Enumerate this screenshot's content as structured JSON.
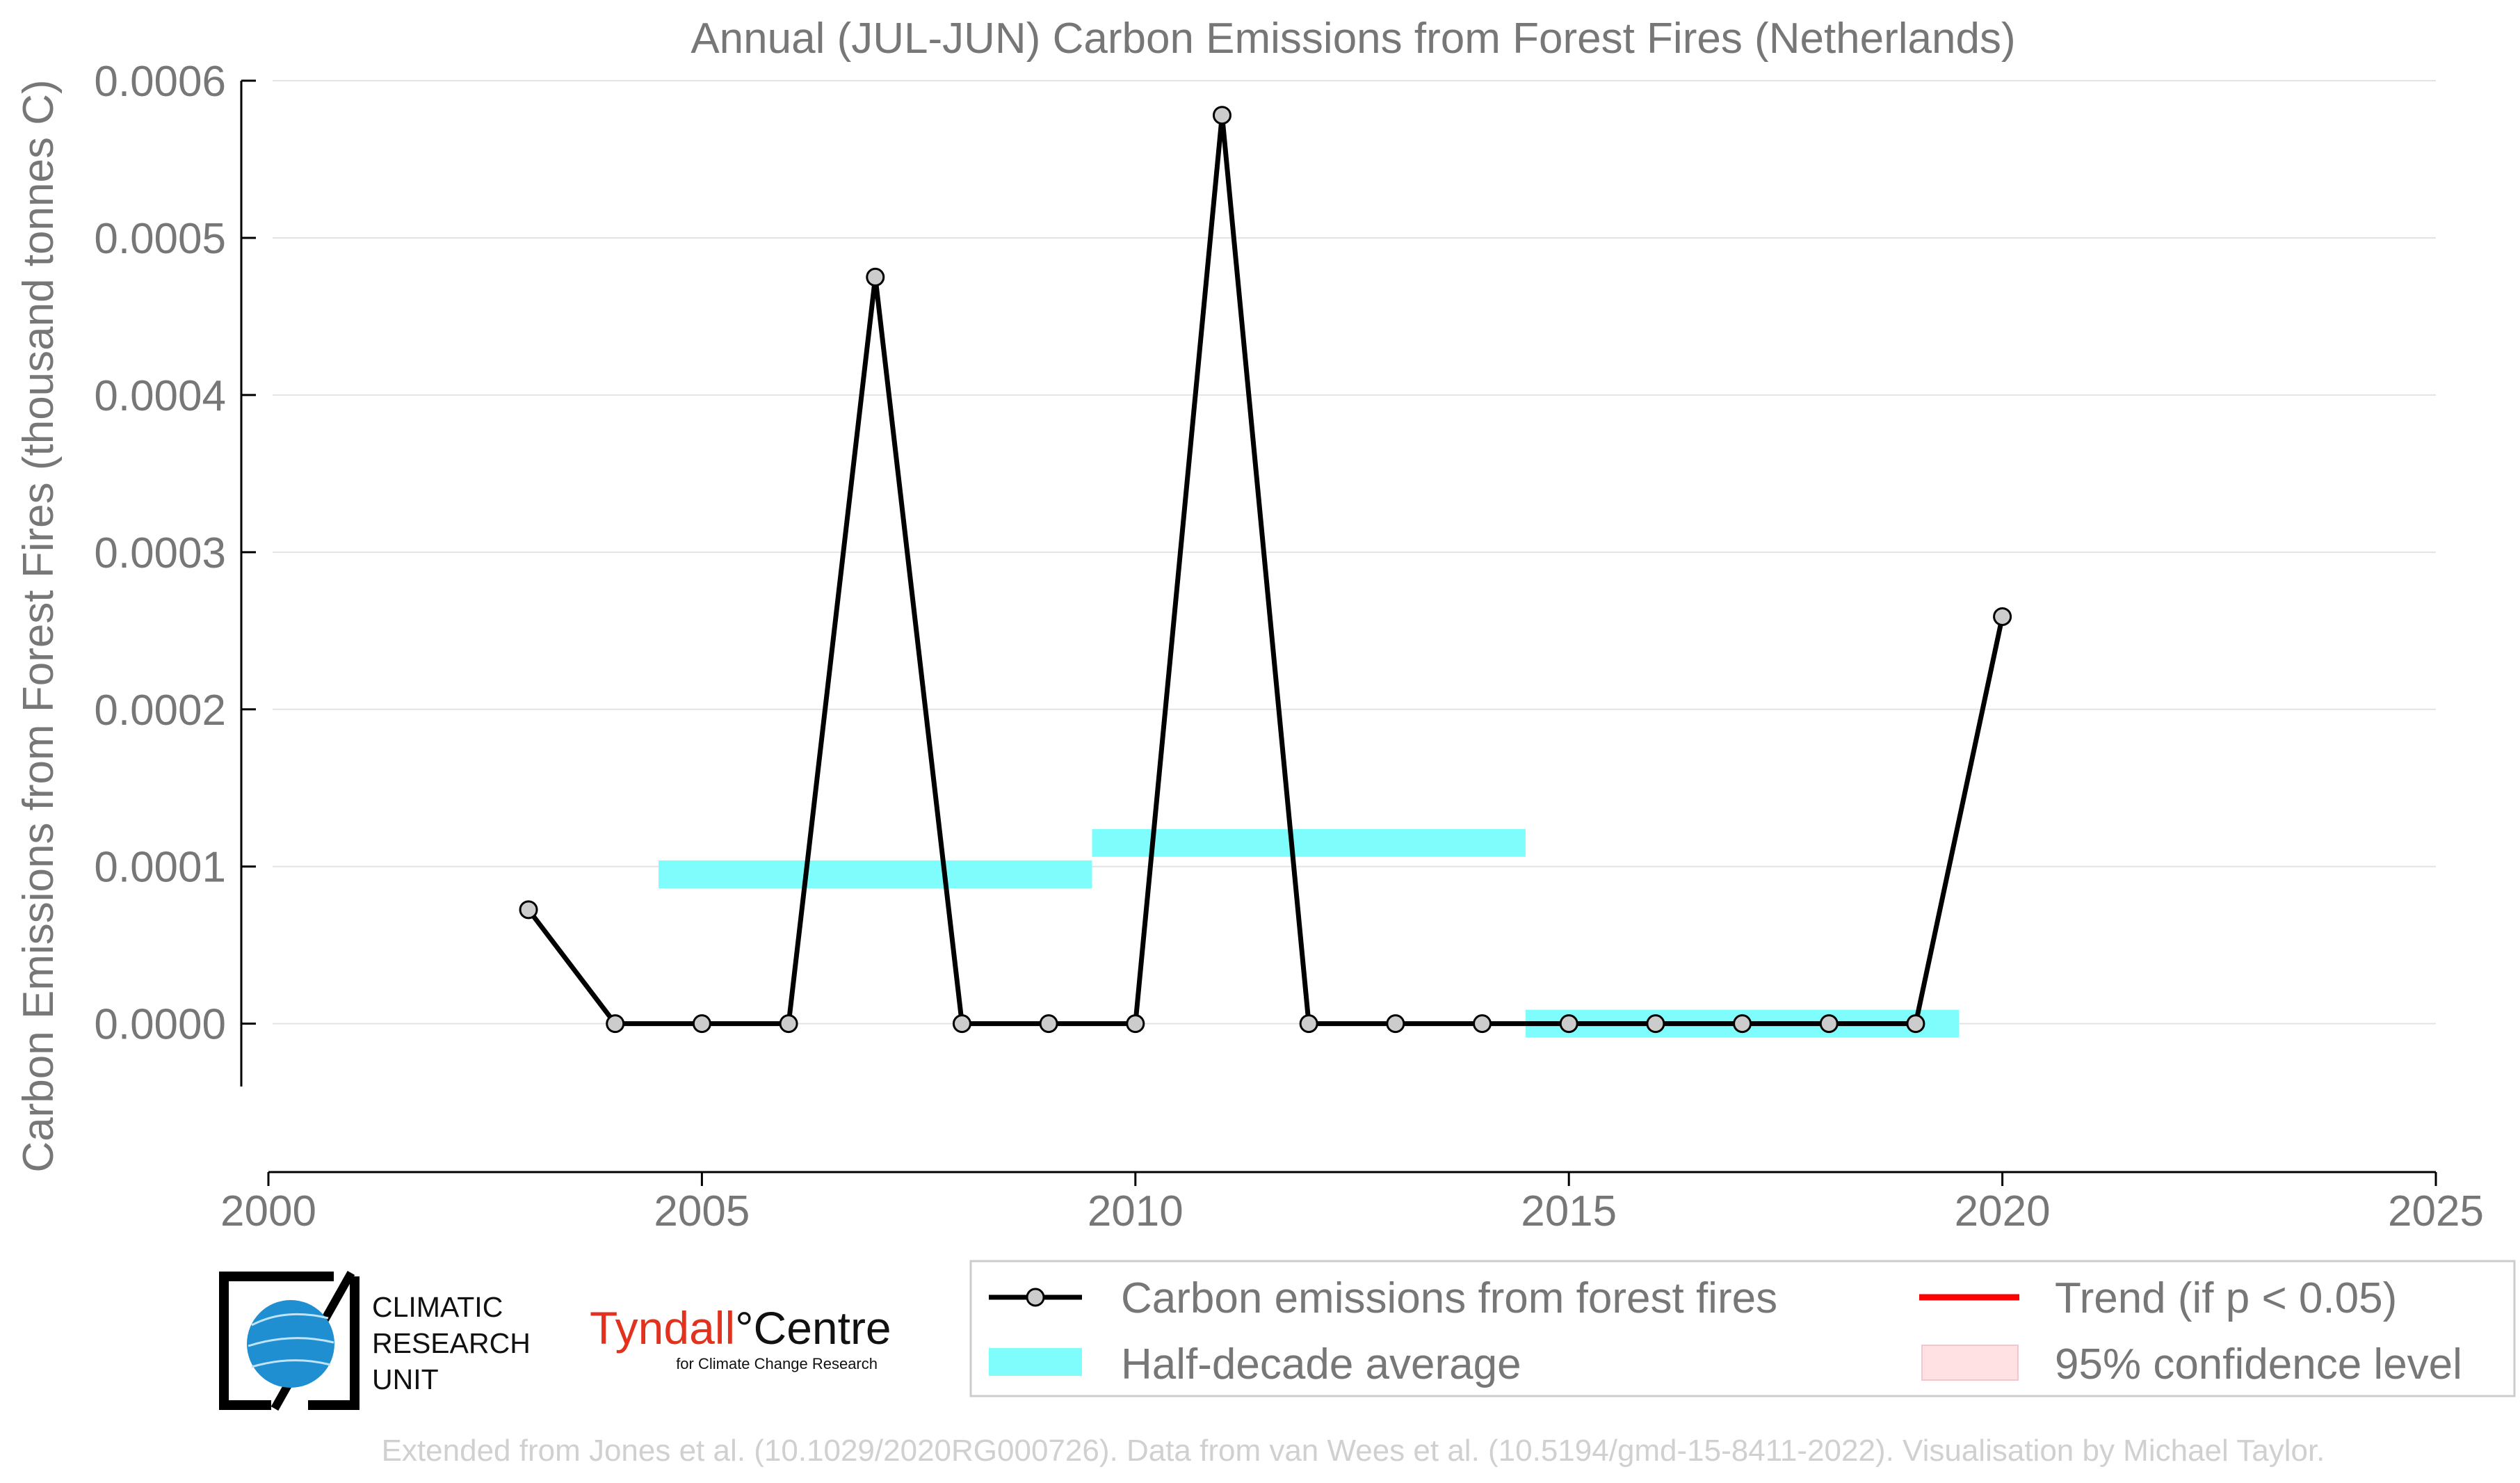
{
  "chart_data": {
    "type": "line",
    "title": "Annual (JUL-JUN) Carbon Emissions from Forest Fires (Netherlands)",
    "ylabel": "Carbon Emissions from Forest Fires (thousand tonnes C)",
    "xlabel": "",
    "xlim": [
      2000,
      2025
    ],
    "ylim": [
      -4e-05,
      0.0006
    ],
    "x_ticks": [
      2000,
      2005,
      2010,
      2015,
      2020,
      2025
    ],
    "y_ticks": [
      0,
      0.0001,
      0.0002,
      0.0003,
      0.0004,
      0.0005,
      0.0006
    ],
    "x_tick_labels": [
      "2000",
      "2005",
      "2010",
      "2015",
      "2020",
      "2025"
    ],
    "y_tick_labels": [
      "0.0000",
      "0.0001",
      "0.0002",
      "0.0003",
      "0.0004",
      "0.0005",
      "0.0006"
    ],
    "grid": "horizontal",
    "series": [
      {
        "name": "Carbon emissions from forest fires",
        "color": "#000000",
        "marker_fill": "#cccccc",
        "x": [
          2003,
          2004,
          2005,
          2006,
          2007,
          2008,
          2009,
          2010,
          2011,
          2012,
          2013,
          2014,
          2015,
          2016,
          2017,
          2018,
          2019,
          2020
        ],
        "y": [
          7.25e-05,
          0,
          0,
          0,
          0.000475,
          0,
          0,
          0,
          0.000578,
          0,
          0,
          0,
          0,
          0,
          0,
          0,
          0,
          0.000259
        ]
      }
    ],
    "half_decade_average": {
      "name": "Half-decade average",
      "color": "#7ffdfd",
      "segments": [
        {
          "x_start": 2004.5,
          "x_end": 2009.5,
          "y": 9.5e-05
        },
        {
          "x_start": 2009.5,
          "x_end": 2014.5,
          "y": 0.000115
        },
        {
          "x_start": 2014.5,
          "x_end": 2019.5,
          "y": 0
        }
      ]
    },
    "legend": {
      "placement": "bottom-right",
      "entries": [
        {
          "label": "Carbon emissions from forest fires",
          "kind": "line-marker",
          "color": "#000000"
        },
        {
          "label": "Trend (if p < 0.05)",
          "kind": "line",
          "color": "#ff0000"
        },
        {
          "label": "Half-decade average",
          "kind": "band",
          "color": "#7ffdfd"
        },
        {
          "label": "95% confidence level",
          "kind": "patch",
          "color": "#ffe0e3"
        }
      ]
    }
  },
  "logos": {
    "cru": {
      "lines": [
        "CLIMATIC",
        "RESEARCH",
        "UNIT"
      ]
    },
    "tyndall": {
      "name": "Tyndall",
      "degree": "°",
      "suffix": "Centre",
      "subtitle": "for Climate Change Research"
    }
  },
  "footer": "Extended from Jones et al. (10.1029/2020RG000726). Data from van Wees et al. (10.5194/gmd-15-8411-2022). Visualisation by Michael Taylor."
}
